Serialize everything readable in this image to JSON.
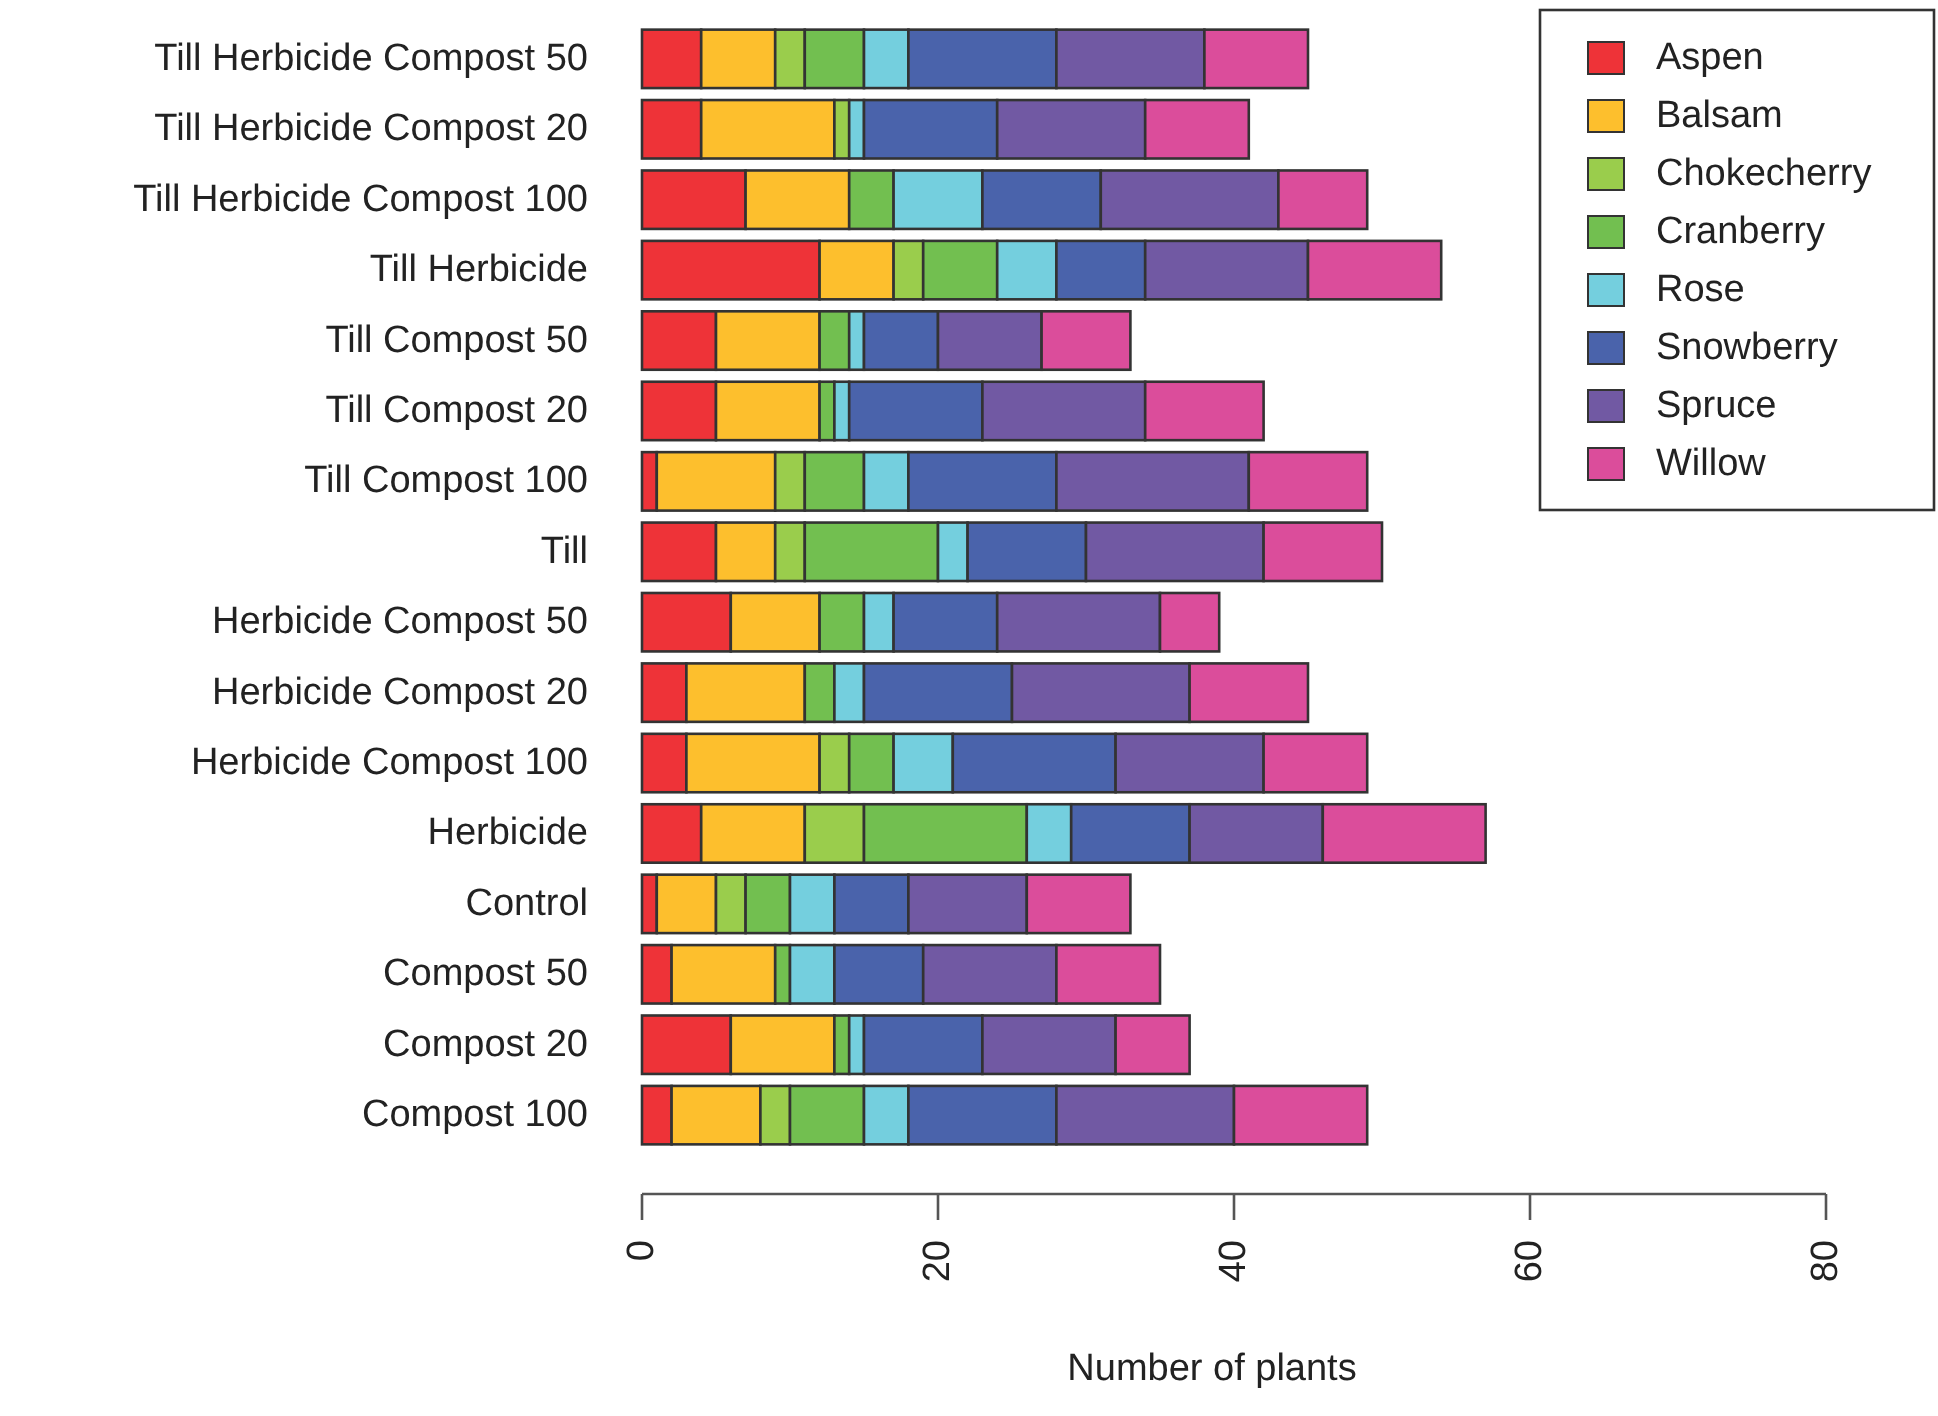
{
  "chart_data": {
    "type": "bar",
    "orientation": "horizontal",
    "stacked": true,
    "xlabel": "Number of plants",
    "categories": [
      "Till Herbicide Compost 50",
      "Till Herbicide Compost 20",
      "Till Herbicide Compost 100",
      "Till Herbicide",
      "Till Compost 50",
      "Till Compost 20",
      "Till Compost 100",
      "Till",
      "Herbicide Compost 50",
      "Herbicide Compost 20",
      "Herbicide Compost 100",
      "Herbicide",
      "Control",
      "Compost 50",
      "Compost 20",
      "Compost 100"
    ],
    "series": [
      {
        "name": "Aspen",
        "color": "#ee3338",
        "values": [
          4,
          4,
          7,
          12,
          5,
          5,
          1,
          5,
          6,
          3,
          3,
          4,
          1,
          2,
          6,
          2
        ]
      },
      {
        "name": "Balsam",
        "color": "#fdbf2d",
        "values": [
          5,
          9,
          7,
          5,
          7,
          7,
          8,
          4,
          6,
          8,
          9,
          7,
          4,
          7,
          7,
          6
        ]
      },
      {
        "name": "Chokecherry",
        "color": "#9acd4c",
        "values": [
          2,
          1,
          0,
          2,
          0,
          0,
          2,
          2,
          0,
          0,
          2,
          4,
          2,
          0,
          0,
          2
        ]
      },
      {
        "name": "Cranberry",
        "color": "#72bf50",
        "values": [
          4,
          0,
          3,
          5,
          2,
          1,
          4,
          9,
          3,
          2,
          3,
          11,
          3,
          1,
          1,
          5
        ]
      },
      {
        "name": "Rose",
        "color": "#74cfde",
        "values": [
          3,
          1,
          6,
          4,
          1,
          1,
          3,
          2,
          2,
          2,
          4,
          3,
          3,
          3,
          1,
          3
        ]
      },
      {
        "name": "Snowberry",
        "color": "#4a63ab",
        "values": [
          10,
          9,
          8,
          6,
          5,
          9,
          10,
          8,
          7,
          10,
          11,
          8,
          5,
          6,
          8,
          10
        ]
      },
      {
        "name": "Spruce",
        "color": "#7159a3",
        "values": [
          10,
          10,
          12,
          11,
          7,
          11,
          13,
          12,
          11,
          12,
          10,
          9,
          8,
          9,
          9,
          12
        ]
      },
      {
        "name": "Willow",
        "color": "#db4d9b",
        "values": [
          7,
          7,
          6,
          9,
          6,
          8,
          8,
          8,
          4,
          8,
          7,
          11,
          7,
          7,
          5,
          9
        ]
      }
    ],
    "xlim": [
      0,
      80
    ],
    "xticks": [
      0,
      20,
      40,
      60,
      80
    ],
    "legend": "top right",
    "grid": false
  }
}
